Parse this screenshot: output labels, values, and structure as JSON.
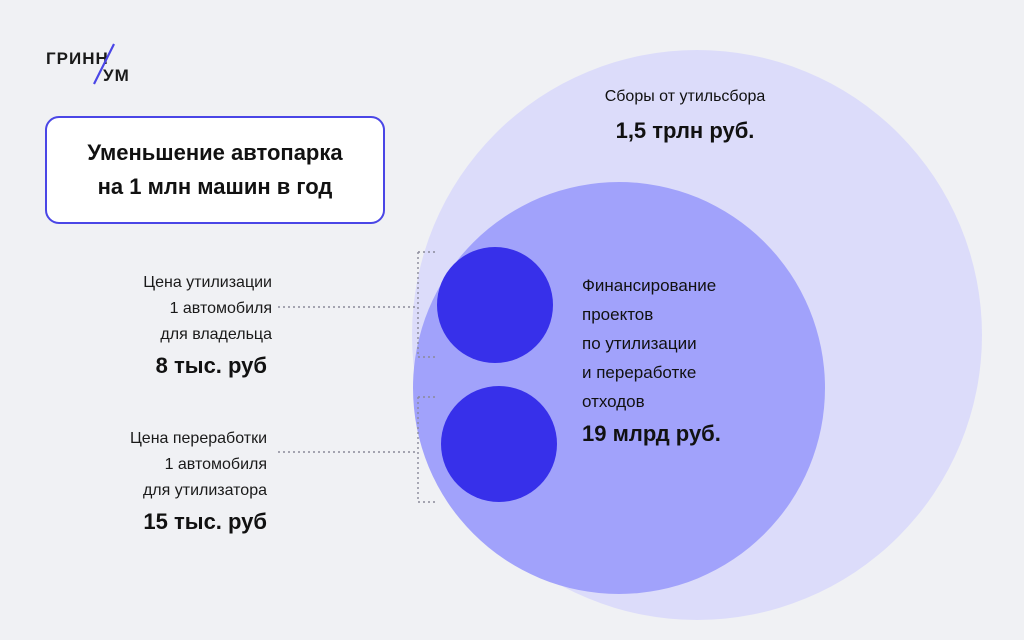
{
  "logo": {
    "top": "ГРИНН",
    "bottom": "УМ"
  },
  "title": {
    "line1": "Уменьшение автопарка",
    "line2": "на 1 млн машин в год"
  },
  "items": [
    {
      "label_lines": [
        "Цена утилизации",
        "1 автомобиля",
        "для владельца"
      ],
      "value": "8 тыс. руб"
    },
    {
      "label_lines": [
        "Цена переработки",
        "1 автомобиля",
        "для утилизатора"
      ],
      "value": "15 тыс. руб"
    }
  ],
  "outer_circle": {
    "label": "Сборы от утильсбора",
    "value": "1,5 трлн руб."
  },
  "inner_circle": {
    "label_lines": [
      "Финансирование",
      "проектов",
      "по утилизации",
      "и переработке",
      "отходов"
    ],
    "value": "19 млрд руб."
  },
  "colors": {
    "outer": "#dcdcfa",
    "inner": "#a1a2fb",
    "small": "#3730ea",
    "accent": "#4a46e6",
    "background": "#f0f1f4"
  }
}
